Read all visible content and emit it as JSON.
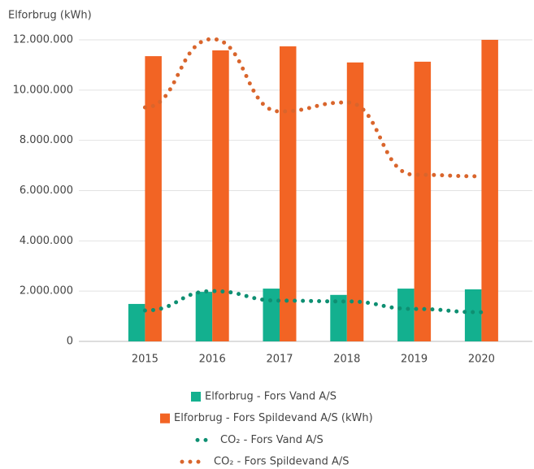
{
  "chart_data": {
    "type": "bar",
    "y_label": "Elforbrug (kWh)",
    "categories": [
      "2015",
      "2016",
      "2017",
      "2018",
      "2019",
      "2020"
    ],
    "ylim": [
      0,
      12000000
    ],
    "yticks": [
      0,
      {
        "value": 2000000,
        "label": "2.000.000"
      },
      {
        "value": 4000000,
        "label": "4.000.000"
      },
      {
        "value": 6000000,
        "label": "6.000.000"
      },
      {
        "value": 8000000,
        "label": "8.000.000"
      },
      {
        "value": 10000000,
        "label": "10.000.000"
      },
      {
        "value": 12000000,
        "label": "12.000.000"
      }
    ],
    "grid": true,
    "series": [
      {
        "name": "Elforbrug - Fors Vand A/S",
        "type": "bar",
        "color": "#13b08f",
        "values": [
          1490000,
          1970000,
          2100000,
          1850000,
          2100000,
          2070000
        ]
      },
      {
        "name": "Elforbrug - Fors Spildevand A/S (kWh)",
        "type": "bar",
        "color": "#f26424",
        "values": [
          11350000,
          11580000,
          11740000,
          11100000,
          11130000,
          12000000
        ]
      },
      {
        "name": "CO₂ - Fors Vand A/S",
        "type": "line",
        "color": "#0e8f72",
        "values": [
          1230000,
          2000000,
          1620000,
          1590000,
          1290000,
          1160000
        ]
      },
      {
        "name": "CO₂ - Fors Spildevand A/S",
        "type": "line",
        "color": "#d9652c",
        "values": [
          9310000,
          12030000,
          9150000,
          9510000,
          6630000,
          6570000
        ]
      }
    ]
  }
}
